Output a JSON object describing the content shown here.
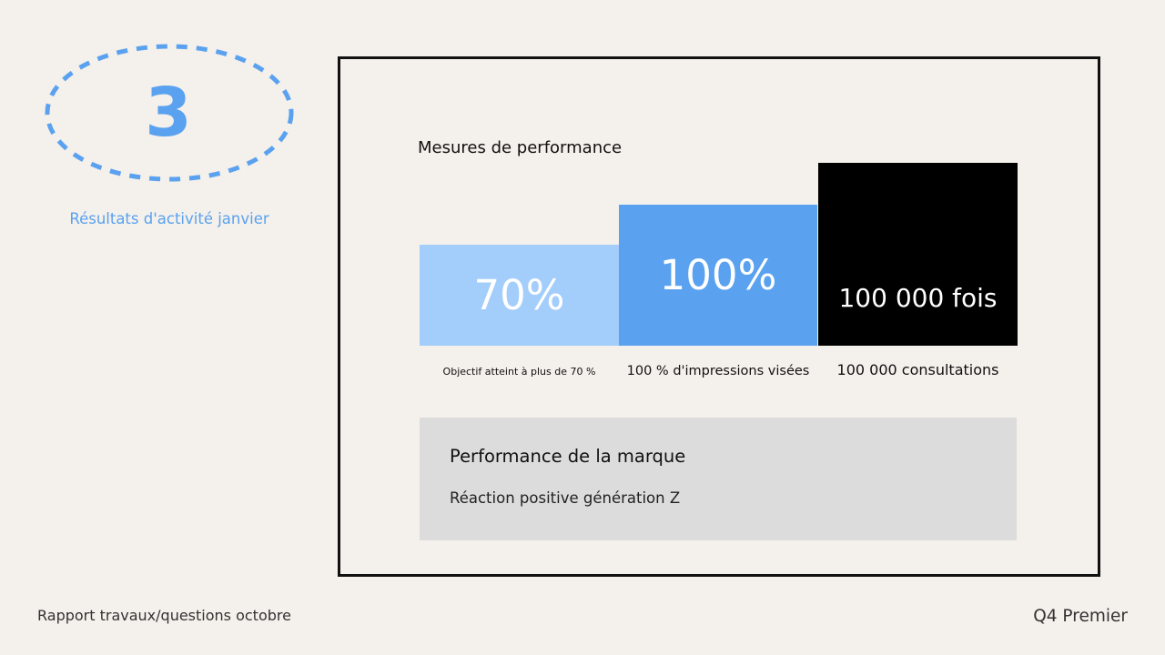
{
  "section": {
    "number": "3",
    "caption": "Résultats d'activité janvier"
  },
  "metrics": {
    "title": "Mesures de performance",
    "items": [
      {
        "value": "70%",
        "caption": "Objectif atteint à plus de 70 %",
        "color": "#a3cdfb"
      },
      {
        "value": "100%",
        "caption": "100 % d'impressions visées",
        "color": "#5aa2f0"
      },
      {
        "value": "100 000 fois",
        "caption": "100 000 consultations",
        "color": "#000000"
      }
    ]
  },
  "brand": {
    "title": "Performance de la marque",
    "text": "Réaction positive génération Z"
  },
  "footer": {
    "left": "Rapport travaux/questions octobre",
    "right": "Q4 Premier"
  },
  "colors": {
    "accent": "#5aa2f0",
    "accent_light": "#a3cdfb",
    "background": "#f4f0eb",
    "panel": "#dddcdc"
  }
}
